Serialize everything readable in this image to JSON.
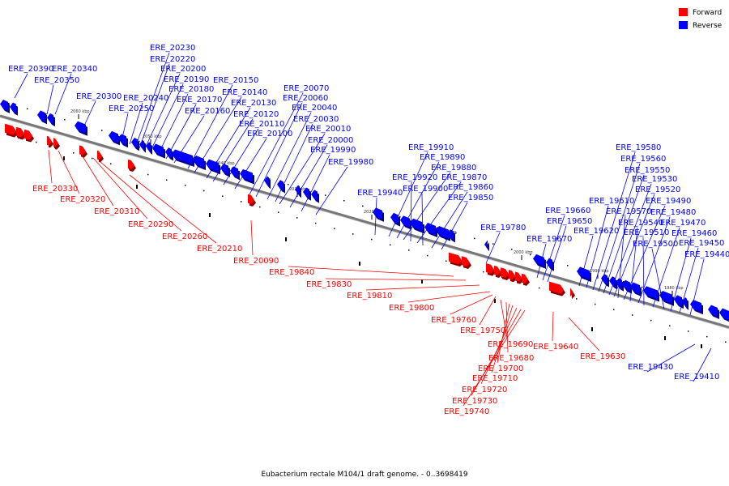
{
  "legend": {
    "forward": "Forward",
    "reverse": "Reverse"
  },
  "colors": {
    "forward": "#ff0000",
    "reverse": "#0000ff",
    "forward_shadow": "#8c0000",
    "reverse_shadow": "#00008c",
    "backbone": "#777777"
  },
  "caption": "Eubacterium rectale M104/1 draft genome. - 0..3698419",
  "ticks": [
    {
      "label": "2060 kbp"
    },
    {
      "label": "2050 kbp"
    },
    {
      "label": "2040 kbp"
    },
    {
      "label": "2030 kbp"
    },
    {
      "label": "2020 kbp"
    },
    {
      "label": "2010 kbp"
    },
    {
      "label": "2000 kbp"
    },
    {
      "label": "1990 kbp"
    },
    {
      "label": "1980 kbp"
    }
  ],
  "genes": [
    {
      "label": "ERE_20390",
      "strand": "reverse"
    },
    {
      "label": "ERE_20350",
      "strand": "reverse"
    },
    {
      "label": "ERE_20340",
      "strand": "reverse"
    },
    {
      "label": "ERE_20300",
      "strand": "reverse"
    },
    {
      "label": "ERE_20250",
      "strand": "reverse"
    },
    {
      "label": "ERE_20240",
      "strand": "reverse"
    },
    {
      "label": "ERE_20230",
      "strand": "reverse"
    },
    {
      "label": "ERE_20220",
      "strand": "reverse"
    },
    {
      "label": "ERE_20200",
      "strand": "reverse"
    },
    {
      "label": "ERE_20190",
      "strand": "reverse"
    },
    {
      "label": "ERE_20180",
      "strand": "reverse"
    },
    {
      "label": "ERE_20170",
      "strand": "reverse"
    },
    {
      "label": "ERE_20160",
      "strand": "reverse"
    },
    {
      "label": "ERE_20150",
      "strand": "reverse"
    },
    {
      "label": "ERE_20140",
      "strand": "reverse"
    },
    {
      "label": "ERE_20130",
      "strand": "reverse"
    },
    {
      "label": "ERE_20120",
      "strand": "reverse"
    },
    {
      "label": "ERE_20110",
      "strand": "reverse"
    },
    {
      "label": "ERE_20100",
      "strand": "reverse"
    },
    {
      "label": "ERE_20070",
      "strand": "reverse"
    },
    {
      "label": "ERE_20060",
      "strand": "reverse"
    },
    {
      "label": "ERE_20040",
      "strand": "reverse"
    },
    {
      "label": "ERE_20030",
      "strand": "reverse"
    },
    {
      "label": "ERE_20010",
      "strand": "reverse"
    },
    {
      "label": "ERE_20000",
      "strand": "reverse"
    },
    {
      "label": "ERE_19990",
      "strand": "reverse"
    },
    {
      "label": "ERE_19980",
      "strand": "reverse"
    },
    {
      "label": "ERE_19940",
      "strand": "reverse"
    },
    {
      "label": "ERE_19910",
      "strand": "reverse"
    },
    {
      "label": "ERE_19890",
      "strand": "reverse"
    },
    {
      "label": "ERE_19880",
      "strand": "reverse"
    },
    {
      "label": "ERE_19920",
      "strand": "reverse"
    },
    {
      "label": "ERE_19870",
      "strand": "reverse"
    },
    {
      "label": "ERE_19900",
      "strand": "reverse"
    },
    {
      "label": "ERE_19860",
      "strand": "reverse"
    },
    {
      "label": "ERE_19850",
      "strand": "reverse"
    },
    {
      "label": "ERE_19780",
      "strand": "reverse"
    },
    {
      "label": "ERE_19670",
      "strand": "reverse"
    },
    {
      "label": "ERE_19660",
      "strand": "reverse"
    },
    {
      "label": "ERE_19650",
      "strand": "reverse"
    },
    {
      "label": "ERE_19620",
      "strand": "reverse"
    },
    {
      "label": "ERE_19610",
      "strand": "reverse"
    },
    {
      "label": "ERE_19580",
      "strand": "reverse"
    },
    {
      "label": "ERE_19560",
      "strand": "reverse"
    },
    {
      "label": "ERE_19550",
      "strand": "reverse"
    },
    {
      "label": "ERE_19530",
      "strand": "reverse"
    },
    {
      "label": "ERE_19520",
      "strand": "reverse"
    },
    {
      "label": "ERE_19570",
      "strand": "reverse"
    },
    {
      "label": "ERE_19490",
      "strand": "reverse"
    },
    {
      "label": "ERE_19540",
      "strand": "reverse"
    },
    {
      "label": "ERE_19480",
      "strand": "reverse"
    },
    {
      "label": "ERE_19510",
      "strand": "reverse"
    },
    {
      "label": "ERE_19470",
      "strand": "reverse"
    },
    {
      "label": "ERE_19500",
      "strand": "reverse"
    },
    {
      "label": "ERE_19460",
      "strand": "reverse"
    },
    {
      "label": "ERE_19450",
      "strand": "reverse"
    },
    {
      "label": "ERE_19440",
      "strand": "reverse"
    },
    {
      "label": "ERE_19430",
      "strand": "reverse"
    },
    {
      "label": "ERE_19410",
      "strand": "reverse"
    },
    {
      "label": "ERE_20330",
      "strand": "forward"
    },
    {
      "label": "ERE_20320",
      "strand": "forward"
    },
    {
      "label": "ERE_20310",
      "strand": "forward"
    },
    {
      "label": "ERE_20290",
      "strand": "forward"
    },
    {
      "label": "ERE_20260",
      "strand": "forward"
    },
    {
      "label": "ERE_20210",
      "strand": "forward"
    },
    {
      "label": "ERE_20090",
      "strand": "forward"
    },
    {
      "label": "ERE_19840",
      "strand": "forward"
    },
    {
      "label": "ERE_19830",
      "strand": "forward"
    },
    {
      "label": "ERE_19810",
      "strand": "forward"
    },
    {
      "label": "ERE_19800",
      "strand": "forward"
    },
    {
      "label": "ERE_19760",
      "strand": "forward"
    },
    {
      "label": "ERE_19750",
      "strand": "forward"
    },
    {
      "label": "ERE_19690",
      "strand": "forward"
    },
    {
      "label": "ERE_19680",
      "strand": "forward"
    },
    {
      "label": "ERE_19700",
      "strand": "forward"
    },
    {
      "label": "ERE_19710",
      "strand": "forward"
    },
    {
      "label": "ERE_19720",
      "strand": "forward"
    },
    {
      "label": "ERE_19730",
      "strand": "forward"
    },
    {
      "label": "ERE_19740",
      "strand": "forward"
    },
    {
      "label": "ERE_19640",
      "strand": "forward"
    },
    {
      "label": "ERE_19630",
      "strand": "forward"
    }
  ]
}
